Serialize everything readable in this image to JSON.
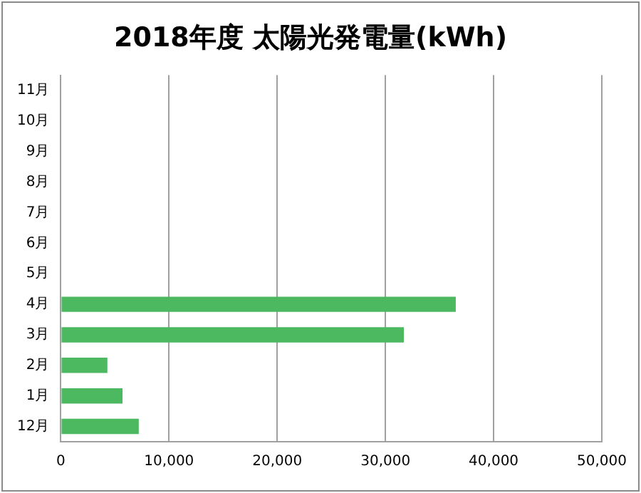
{
  "chart_data": {
    "type": "bar",
    "orientation": "horizontal",
    "title": "2018年度 太陽光発電量(kWh)",
    "categories": [
      "11月",
      "10月",
      "9月",
      "8月",
      "7月",
      "6月",
      "5月",
      "4月",
      "3月",
      "2月",
      "1月",
      "12月"
    ],
    "values": [
      null,
      null,
      null,
      null,
      null,
      null,
      null,
      36500,
      31700,
      4300,
      5700,
      7200
    ],
    "color": "#4cb860",
    "xlim": [
      0,
      50000
    ],
    "xticks": [
      {
        "value": 0,
        "label": "0"
      },
      {
        "value": 10000,
        "label": "10,000"
      },
      {
        "value": 20000,
        "label": "20,000"
      },
      {
        "value": 30000,
        "label": "30,000"
      },
      {
        "value": 40000,
        "label": "40,000"
      },
      {
        "value": 50000,
        "label": "50,000"
      }
    ],
    "grid": "x",
    "legend": false
  }
}
